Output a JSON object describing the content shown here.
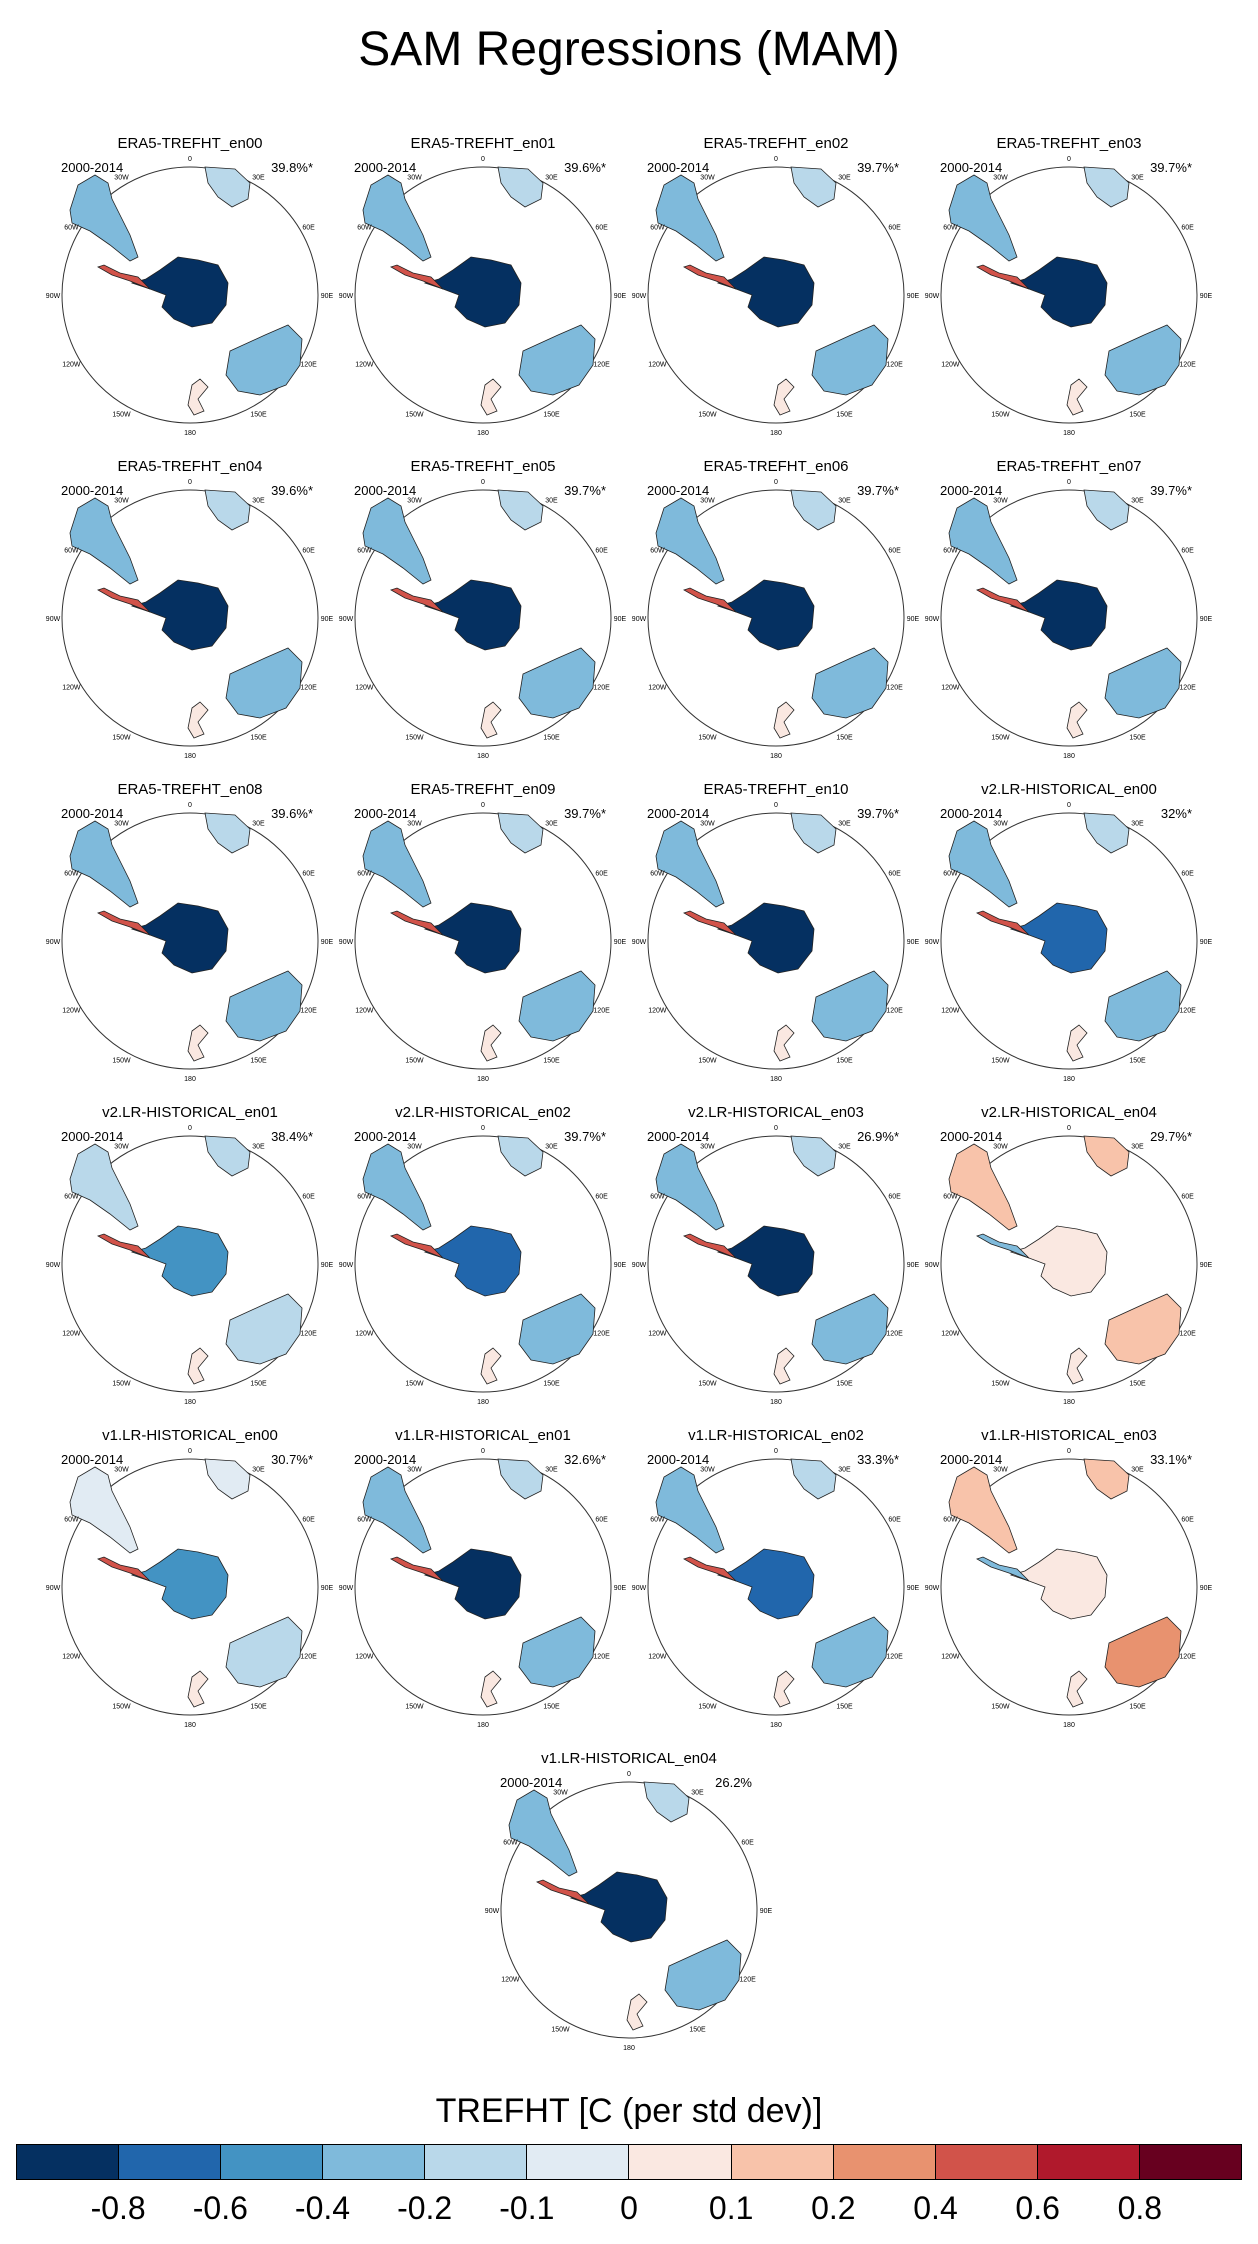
{
  "title": "SAM Regressions (MAM)",
  "chart_data": {
    "type": "map",
    "variable": "TREFHT",
    "units_label": "TREFHT [C (per std dev)]",
    "period": "2000-2014",
    "projection": "south polar stereographic",
    "longitude_labels": [
      "0",
      "30E",
      "60E",
      "90E",
      "120E",
      "150E",
      "180",
      "150W",
      "120W",
      "90W",
      "60W",
      "30W"
    ],
    "colorbar": {
      "levels": [
        "-0.8",
        "-0.6",
        "-0.4",
        "-0.2",
        "-0.1",
        "0",
        "0.1",
        "0.2",
        "0.4",
        "0.6",
        "0.8"
      ],
      "colors": [
        "#053061",
        "#2166ac",
        "#4393c3",
        "#7fbadb",
        "#b9d8ea",
        "#e1ebf3",
        "#fae8e1",
        "#f8c3aa",
        "#e8926f",
        "#d1534a",
        "#b0192c",
        "#67001f"
      ]
    },
    "panels": [
      {
        "name": "ERA5-TREFHT_en00",
        "pct": "39.8%*",
        "tone": -0.55
      },
      {
        "name": "ERA5-TREFHT_en01",
        "pct": "39.6%*",
        "tone": -0.55
      },
      {
        "name": "ERA5-TREFHT_en02",
        "pct": "39.7%*",
        "tone": -0.55
      },
      {
        "name": "ERA5-TREFHT_en03",
        "pct": "39.7%*",
        "tone": -0.55
      },
      {
        "name": "ERA5-TREFHT_en04",
        "pct": "39.6%*",
        "tone": -0.55
      },
      {
        "name": "ERA5-TREFHT_en05",
        "pct": "39.7%*",
        "tone": -0.55
      },
      {
        "name": "ERA5-TREFHT_en06",
        "pct": "39.7%*",
        "tone": -0.55
      },
      {
        "name": "ERA5-TREFHT_en07",
        "pct": "39.7%*",
        "tone": -0.55
      },
      {
        "name": "ERA5-TREFHT_en08",
        "pct": "39.6%*",
        "tone": -0.55
      },
      {
        "name": "ERA5-TREFHT_en09",
        "pct": "39.7%*",
        "tone": -0.55
      },
      {
        "name": "ERA5-TREFHT_en10",
        "pct": "39.7%*",
        "tone": -0.55
      },
      {
        "name": "v2.LR-HISTORICAL_en00",
        "pct": "32%*",
        "tone": -0.5
      },
      {
        "name": "v2.LR-HISTORICAL_en01",
        "pct": "38.4%*",
        "tone": -0.3
      },
      {
        "name": "v2.LR-HISTORICAL_en02",
        "pct": "39.7%*",
        "tone": -0.45
      },
      {
        "name": "v2.LR-HISTORICAL_en03",
        "pct": "26.9%*",
        "tone": -0.55
      },
      {
        "name": "v2.LR-HISTORICAL_en04",
        "pct": "29.7%*",
        "tone": 0.3
      },
      {
        "name": "v1.LR-HISTORICAL_en00",
        "pct": "30.7%*",
        "tone": -0.2
      },
      {
        "name": "v1.LR-HISTORICAL_en01",
        "pct": "32.6%*",
        "tone": -0.55
      },
      {
        "name": "v1.LR-HISTORICAL_en02",
        "pct": "33.3%*",
        "tone": -0.5
      },
      {
        "name": "v1.LR-HISTORICAL_en03",
        "pct": "33.1%*",
        "tone": 0.35
      },
      {
        "name": "v1.LR-HISTORICAL_en04",
        "pct": "26.2%",
        "tone": -0.55
      }
    ]
  }
}
